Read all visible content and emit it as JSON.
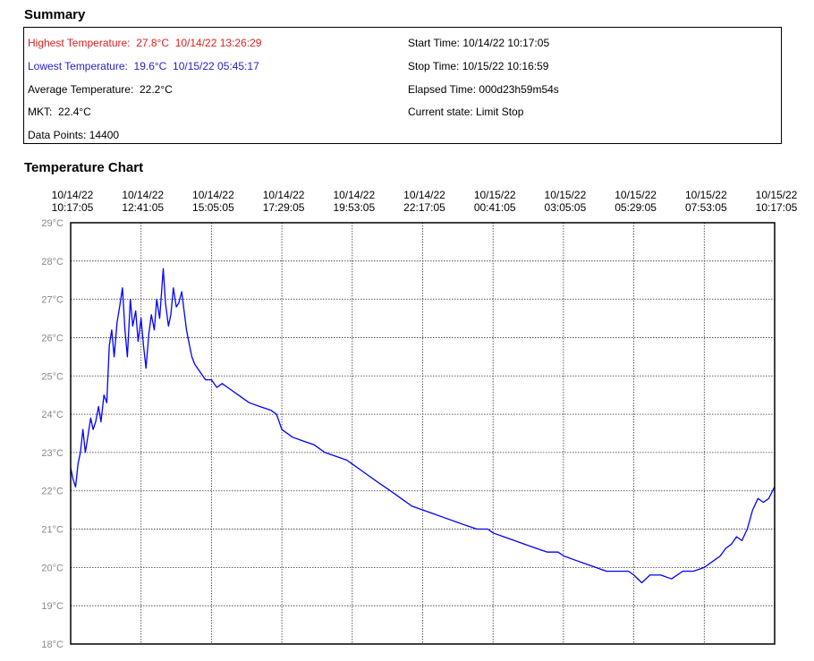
{
  "summary": {
    "title": "Summary",
    "highest_label": "Highest Temperature:",
    "highest_value": "27.8°C",
    "highest_time": "10/14/22 13:26:29",
    "lowest_label": "Lowest Temperature:",
    "lowest_value": "19.6°C",
    "lowest_time": "10/15/22 05:45:17",
    "average_label": "Average Temperature:",
    "average_value": "22.2°C",
    "mkt_label": "MKT:",
    "mkt_value": "22.4°C",
    "points_label": "Data Points:",
    "points_value": "14400",
    "start_label": "Start Time:",
    "start_value": "10/14/22 10:17:05",
    "stop_label": "Stop Time:",
    "stop_value": "10/15/22 10:16:59",
    "elapsed_label": "Elapsed Time:",
    "elapsed_value": "000d23h59m54s",
    "state_label": "Current state:",
    "state_value": "Limit Stop",
    "colors": {
      "highest": "#e02020",
      "lowest": "#2424c8"
    }
  },
  "chart_data": {
    "type": "line",
    "title": "Temperature Chart",
    "xlabel": "",
    "ylabel": "",
    "x_ticks": [
      {
        "date": "10/14/22",
        "time": "10:17:05"
      },
      {
        "date": "10/14/22",
        "time": "12:41:05"
      },
      {
        "date": "10/14/22",
        "time": "15:05:05"
      },
      {
        "date": "10/14/22",
        "time": "17:29:05"
      },
      {
        "date": "10/14/22",
        "time": "19:53:05"
      },
      {
        "date": "10/14/22",
        "time": "22:17:05"
      },
      {
        "date": "10/15/22",
        "time": "00:41:05"
      },
      {
        "date": "10/15/22",
        "time": "03:05:05"
      },
      {
        "date": "10/15/22",
        "time": "05:29:05"
      },
      {
        "date": "10/15/22",
        "time": "07:53:05"
      },
      {
        "date": "10/15/22",
        "time": "10:17:05"
      }
    ],
    "y_ticks": [
      "29°C",
      "28°C",
      "27°C",
      "26°C",
      "25°C",
      "24°C",
      "23°C",
      "22°C",
      "21°C",
      "20°C",
      "19°C",
      "18°C"
    ],
    "ylim": [
      18,
      29
    ],
    "xlim": [
      "10/14/22 10:17:05",
      "10/15/22 10:17:05"
    ],
    "grid": true,
    "line_color": "#0000ff",
    "series": [
      {
        "x": [
          "10/14/22 10:17:05",
          "10/14/22 10:22:05",
          "10/14/22 10:27:05",
          "10/14/22 10:32:05",
          "10/14/22 10:37:05",
          "10/14/22 10:42:05",
          "10/14/22 10:47:05",
          "10/14/22 10:52:05",
          "10/14/22 10:58:05",
          "10/14/22 11:03:05",
          "10/14/22 11:08:05",
          "10/14/22 11:14:05",
          "10/14/22 11:19:05",
          "10/14/22 11:25:05",
          "10/14/22 11:31:05",
          "10/14/22 11:36:05",
          "10/14/22 11:41:05",
          "10/14/22 11:46:05",
          "10/14/22 11:52:05",
          "10/14/22 11:57:05",
          "10/14/22 12:03:05",
          "10/14/22 12:08:05",
          "10/14/22 12:13:05",
          "10/14/22 12:19:05",
          "10/14/22 12:24:05",
          "10/14/22 12:30:05",
          "10/14/22 12:35:05",
          "10/14/22 12:41:05",
          "10/14/22 12:46:05",
          "10/14/22 12:51:05",
          "10/14/22 12:57:05",
          "10/14/22 13:02:05",
          "10/14/22 13:08:05",
          "10/14/22 13:13:05",
          "10/14/22 13:19:05",
          "10/14/22 13:26:29",
          "10/14/22 13:31:05",
          "10/14/22 13:37:05",
          "10/14/22 13:42:05",
          "10/14/22 13:47:05",
          "10/14/22 13:53:05",
          "10/14/22 13:58:05",
          "10/14/22 14:04:05",
          "10/14/22 14:09:05",
          "10/14/22 14:14:05",
          "10/14/22 14:20:05",
          "10/14/22 14:25:05",
          "10/14/22 14:31:05",
          "10/14/22 14:42:05",
          "10/14/22 14:53:05",
          "10/14/22 15:05:05",
          "10/14/22 15:16:05",
          "10/14/22 15:27:05",
          "10/14/22 15:38:05",
          "10/14/22 15:49:05",
          "10/14/22 16:00:05",
          "10/14/22 16:22:05",
          "10/14/22 16:44:05",
          "10/14/22 17:07:05",
          "10/14/22 17:18:05",
          "10/14/22 17:29:05",
          "10/14/22 17:51:05",
          "10/14/22 18:13:05",
          "10/14/22 18:35:05",
          "10/14/22 18:57:05",
          "10/14/22 19:20:05",
          "10/14/22 19:42:05",
          "10/14/22 19:53:05",
          "10/14/22 20:04:05",
          "10/14/22 20:26:05",
          "10/14/22 20:48:05",
          "10/14/22 21:11:05",
          "10/14/22 21:33:05",
          "10/14/22 21:55:05",
          "10/14/22 22:17:05",
          "10/14/22 22:39:05",
          "10/14/22 23:01:05",
          "10/14/22 23:23:05",
          "10/14/22 23:45:05",
          "10/15/22 00:08:05",
          "10/15/22 00:30:05",
          "10/15/22 00:41:05",
          "10/15/22 01:03:05",
          "10/15/22 01:25:05",
          "10/15/22 01:47:05",
          "10/15/22 02:09:05",
          "10/15/22 02:32:05",
          "10/15/22 02:54:05",
          "10/15/22 03:05:05",
          "10/15/22 03:27:05",
          "10/15/22 03:49:05",
          "10/15/22 04:11:05",
          "10/15/22 04:33:05",
          "10/15/22 04:56:05",
          "10/15/22 05:18:05",
          "10/15/22 05:29:05",
          "10/15/22 05:45:17",
          "10/15/22 06:02:05",
          "10/15/22 06:24:05",
          "10/15/22 06:46:05",
          "10/15/22 07:09:05",
          "10/15/22 07:31:05",
          "10/15/22 07:53:05",
          "10/15/22 08:15:05",
          "10/15/22 08:26:05",
          "10/15/22 08:37:05",
          "10/15/22 08:48:05",
          "10/15/22 08:59:05",
          "10/15/22 09:10:05",
          "10/15/22 09:21:05",
          "10/15/22 09:32:05",
          "10/15/22 09:43:05",
          "10/15/22 09:54:05",
          "10/15/22 10:05:05",
          "10/15/22 10:16:59"
        ],
        "y": [
          22.6,
          22.3,
          22.1,
          22.7,
          23.0,
          23.6,
          23.0,
          23.4,
          23.9,
          23.6,
          23.8,
          24.2,
          23.8,
          24.5,
          24.3,
          25.8,
          26.2,
          25.5,
          26.4,
          26.8,
          27.3,
          26.2,
          25.5,
          27.0,
          26.3,
          26.7,
          25.9,
          26.5,
          25.8,
          25.2,
          26.1,
          26.6,
          26.2,
          27.0,
          26.5,
          27.8,
          26.9,
          26.3,
          26.6,
          27.3,
          26.8,
          26.9,
          27.2,
          26.7,
          26.2,
          25.8,
          25.5,
          25.3,
          25.1,
          24.9,
          24.9,
          24.7,
          24.8,
          24.7,
          24.6,
          24.5,
          24.3,
          24.2,
          24.1,
          24.0,
          23.6,
          23.4,
          23.3,
          23.2,
          23.0,
          22.9,
          22.8,
          22.7,
          22.6,
          22.4,
          22.2,
          22.0,
          21.8,
          21.6,
          21.5,
          21.4,
          21.3,
          21.2,
          21.1,
          21.0,
          21.0,
          20.9,
          20.8,
          20.7,
          20.6,
          20.5,
          20.4,
          20.4,
          20.3,
          20.2,
          20.1,
          20.0,
          19.9,
          19.9,
          19.9,
          19.8,
          19.6,
          19.8,
          19.8,
          19.7,
          19.9,
          19.9,
          20.0,
          20.2,
          20.3,
          20.5,
          20.6,
          20.8,
          20.7,
          21.0,
          21.5,
          21.8,
          21.7,
          21.8,
          22.1
        ]
      }
    ]
  }
}
